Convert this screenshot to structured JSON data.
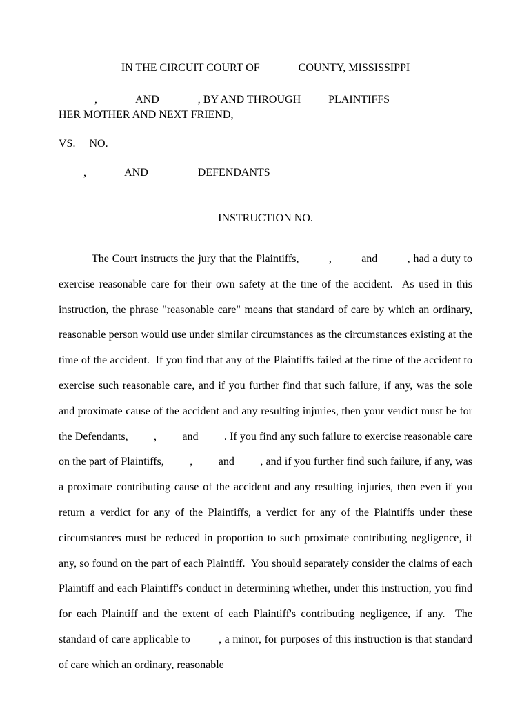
{
  "header": {
    "court_prefix": "IN THE CIRCUIT COURT OF",
    "court_suffix": "COUNTY, MISSISSIPPI"
  },
  "parties": {
    "line1_comma": ",",
    "line1_and": "AND",
    "line1_by": ", BY AND THROUGH",
    "line1_plaintiffs": "PLAINTIFFS",
    "line2": "HER MOTHER AND NEXT FRIEND,",
    "vs": "VS.",
    "no": "NO.",
    "def_comma": ",",
    "def_and": "AND",
    "def_label": "DEFENDANTS"
  },
  "instruction": {
    "title": "INSTRUCTION NO."
  },
  "body": {
    "text": "The Court instructs the jury that the Plaintiffs,         ,         and         , had a duty to exercise reasonable care for their own safety at the tine of the accident.  As used in this instruction, the phrase \"reasonable care\" means that standard of care by which an ordinary, reasonable person would use under similar circumstances as the circumstances existing at the time of the accident.  If you find that any of the Plaintiffs failed at the time of the accident to exercise such reasonable care, and if you further find that such failure, if any, was the sole and proximate cause of the accident and any resulting injuries, then your verdict must be for the Defendants,         ,         and         . If you find any such failure to exercise reasonable care on the part of Plaintiffs,         ,         and         , and if you further find such failure, if any, was a proximate contributing cause of the accident and any resulting injuries, then even if you return a verdict for any of the Plaintiffs, a verdict for any of the Plaintiffs under these circumstances must be reduced in proportion to such proximate contributing negligence, if any, so found on the part of each Plaintiff.  You should separately consider the claims of each Plaintiff and each Plaintiff's conduct in determining whether, under this instruction, you find for each Plaintiff and the extent of each Plaintiff's contributing negligence, if any.  The standard of care applicable to         , a minor, for purposes of this instruction is that standard of care which an ordinary, reasonable"
  }
}
